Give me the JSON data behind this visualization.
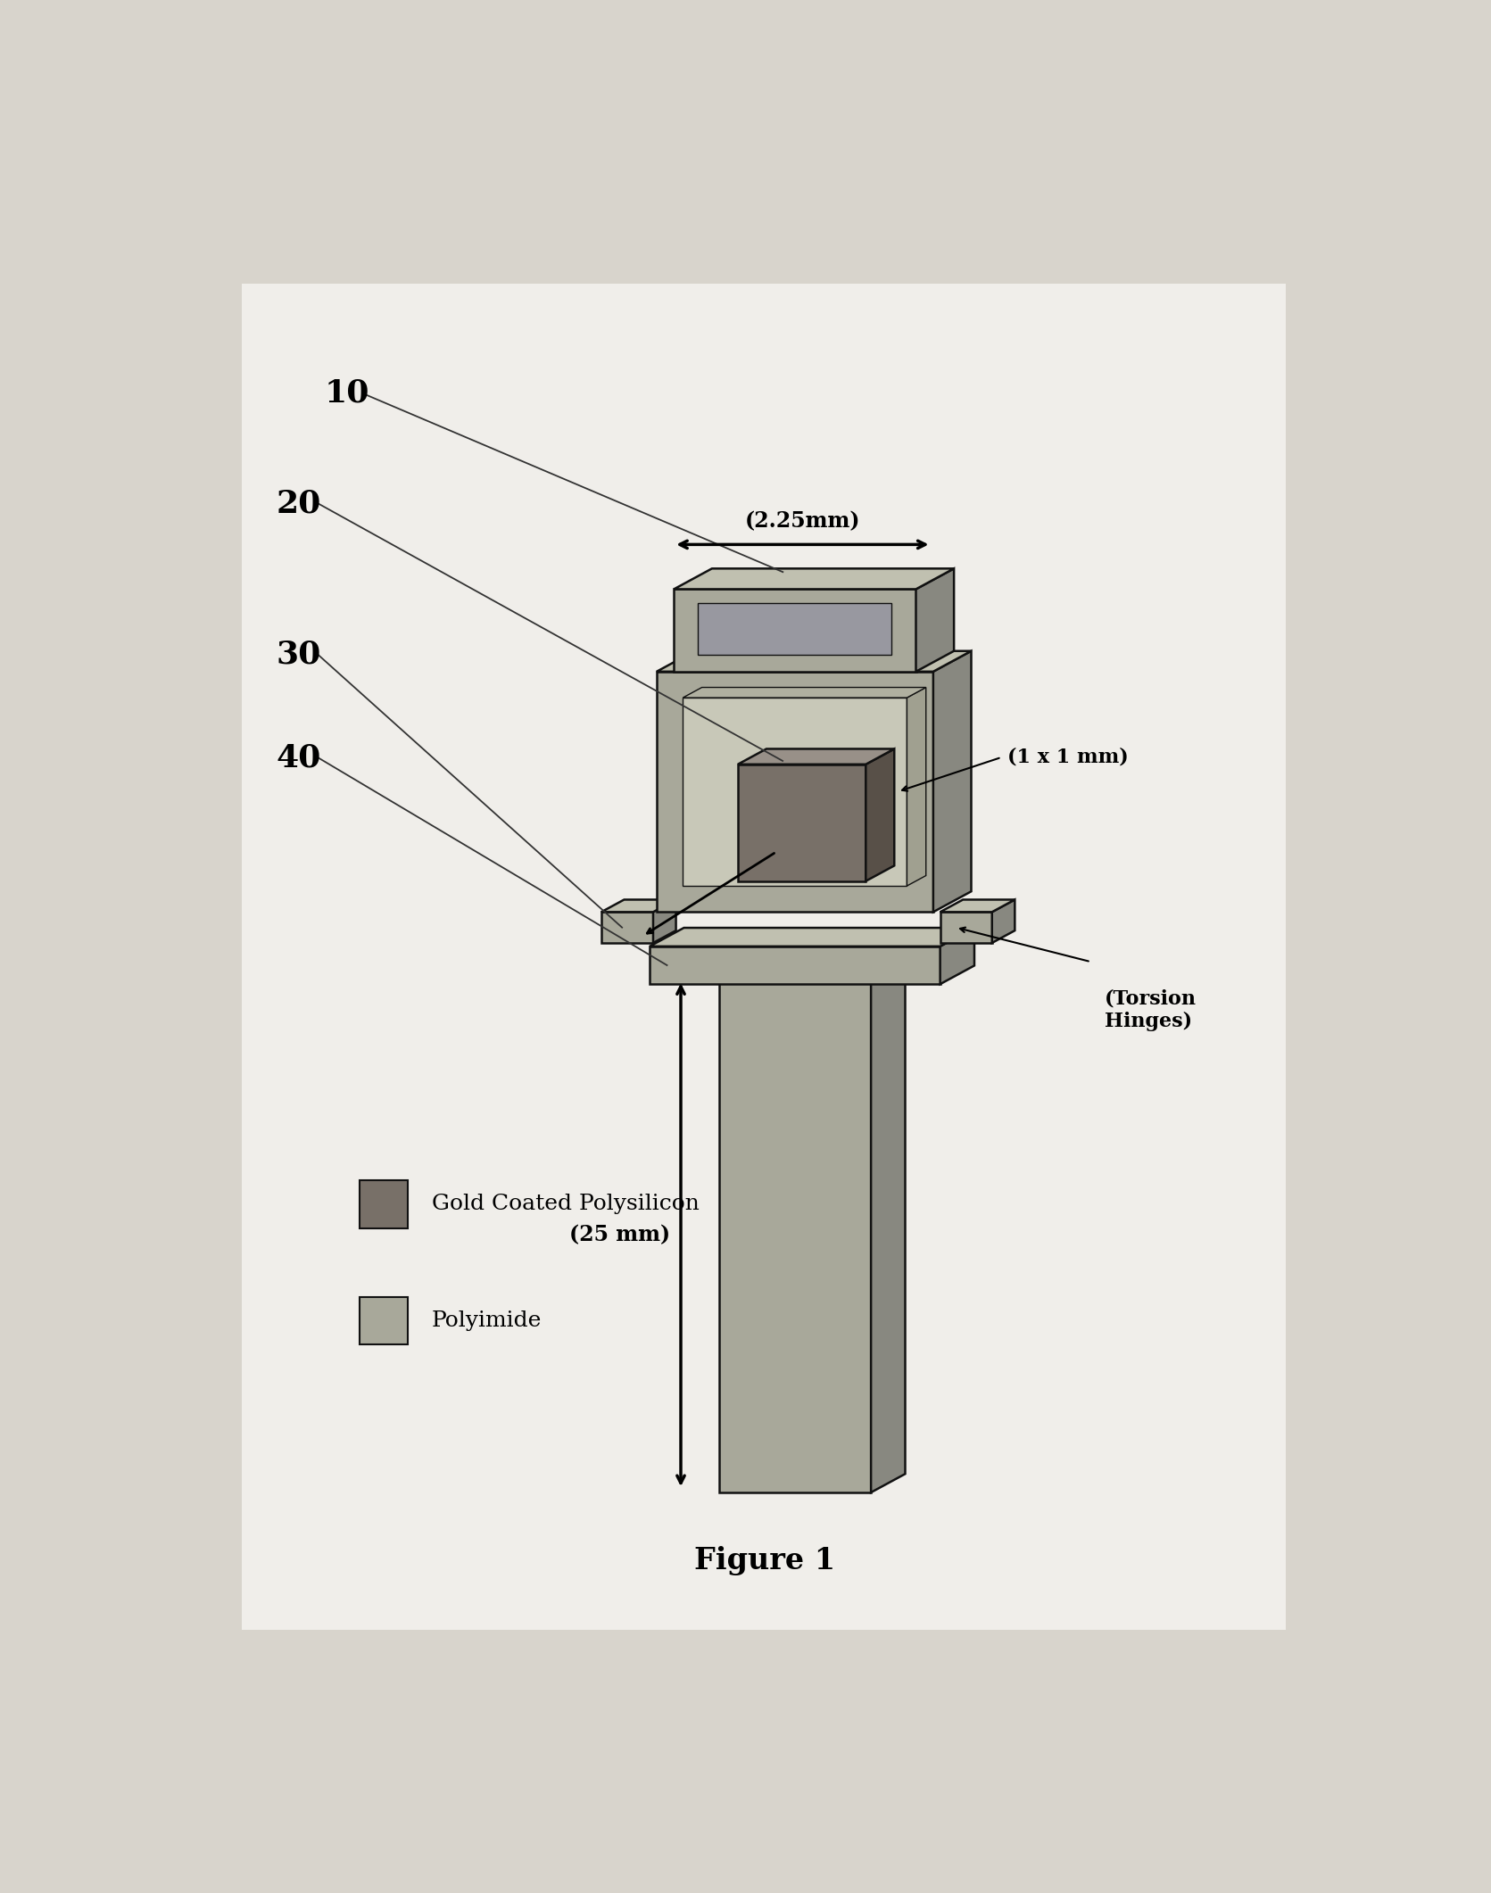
{
  "bg_color": "#d8d4cc",
  "white_area": "#f0eeea",
  "polyimide_face": "#a8a89a",
  "polyimide_side": "#888880",
  "polyimide_top": "#c0c0b0",
  "gold_face": "#787068",
  "gold_side": "#585048",
  "gold_top": "#989088",
  "edge_color": "#111111",
  "title": "Figure 1",
  "label_10": "10",
  "label_20": "20",
  "label_30": "30",
  "label_40": "40",
  "dim_225": "(2.25mm)",
  "dim_1x1": "(1 x 1 mm)",
  "dim_25": "(25 mm)",
  "torsion": "(Torsion\nHinges)",
  "legend_gold": "Gold Coated Polysilicon",
  "legend_poly": "Polyimide"
}
